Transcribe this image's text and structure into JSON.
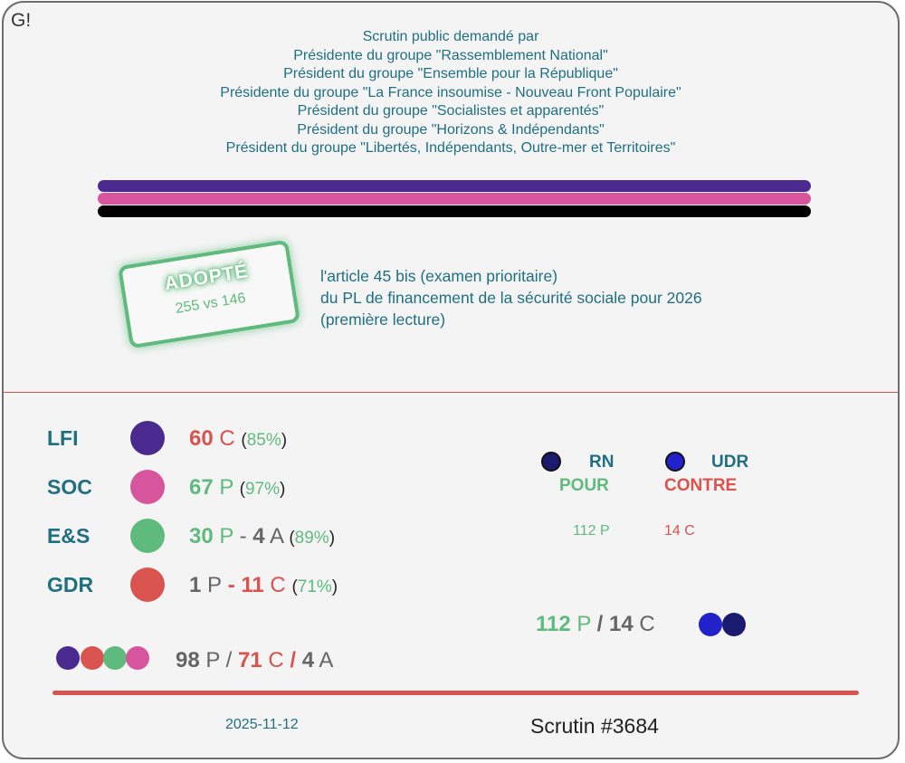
{
  "logo": "G!",
  "requesters": [
    "Scrutin public demandé par",
    "Présidente du groupe \"Rassemblement National\"",
    "Président du groupe \"Ensemble pour la République\"",
    "Présidente du groupe \"La France insoumise - Nouveau Front Populaire\"",
    "Président du groupe \"Socialistes et apparentés\"",
    "Président du groupe \"Horizons & Indépendants\"",
    "Président du groupe \"Libertés, Indépendants, Outre-mer et Territoires\""
  ],
  "bar_colors": [
    "#4b2a8f",
    "#d6559d",
    "#000000"
  ],
  "stamp": {
    "title": "ADOPTÉ",
    "score": "255 vs 146"
  },
  "subject": [
    "l'article 45 bis (examen prioritaire)",
    "du PL de financement de la sécurité sociale pour 2026",
    "(première lecture)"
  ],
  "groups": [
    {
      "name": "LFI",
      "color": "#4b2a8f",
      "parts": [
        {
          "num": "60",
          "abbr": "C",
          "kind": "r"
        }
      ],
      "pct": "85%"
    },
    {
      "name": "SOC",
      "color": "#d6559d",
      "parts": [
        {
          "num": "67",
          "abbr": "P",
          "kind": "g"
        }
      ],
      "pct": "97%"
    },
    {
      "name": "E&S",
      "color": "#5fba7d",
      "parts": [
        {
          "num": "30",
          "abbr": "P",
          "kind": "g"
        },
        {
          "num": "4",
          "abbr": "A",
          "kind": "gr"
        }
      ],
      "pct": "89%"
    },
    {
      "name": "GDR",
      "color": "#d9534f",
      "parts": [
        {
          "num": "1",
          "abbr": "P",
          "kind": "gr"
        },
        {
          "num": "11",
          "abbr": "C",
          "kind": "r"
        }
      ],
      "pct": "71%"
    }
  ],
  "left_totals": {
    "p": "98",
    "p_label": "P",
    "c": "71",
    "c_label": "C",
    "a": "4",
    "a_label": "A"
  },
  "right_groups": [
    {
      "name": "RN",
      "dot_color": "#1a1a6e",
      "vote": "POUR",
      "count": "112",
      "count_label": "P",
      "vote_color": "#5fba7d"
    },
    {
      "name": "UDR",
      "dot_color": "#2222cc",
      "vote": "CONTRE",
      "count": "14",
      "count_label": "C",
      "vote_color": "#d9534f"
    }
  ],
  "right_totals": {
    "p": "112",
    "p_label": "P",
    "c": "14",
    "c_label": "C"
  },
  "date": "2025-11-12",
  "scrutin": "Scrutin #3684",
  "accent_colors": {
    "pour": "#5fba7d",
    "contre": "#d9534f",
    "text": "#1f6f82"
  }
}
